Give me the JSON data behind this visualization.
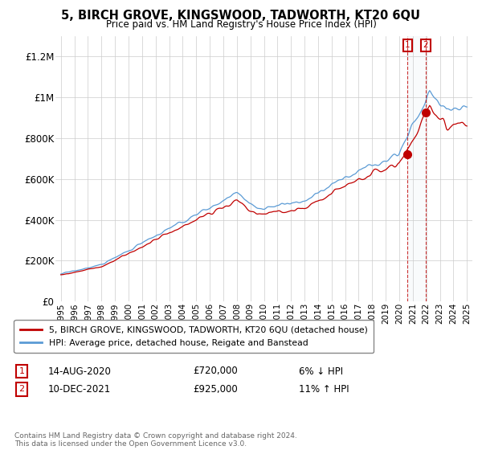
{
  "title": "5, BIRCH GROVE, KINGSWOOD, TADWORTH, KT20 6QU",
  "subtitle": "Price paid vs. HM Land Registry's House Price Index (HPI)",
  "ylim": [
    0,
    1300000
  ],
  "yticks": [
    0,
    200000,
    400000,
    600000,
    800000,
    1000000,
    1200000
  ],
  "ytick_labels": [
    "£0",
    "£200K",
    "£400K",
    "£600K",
    "£800K",
    "£1M",
    "£1.2M"
  ],
  "hpi_color": "#5b9bd5",
  "price_color": "#c00000",
  "vline_color": "#c00000",
  "span_color": "#dce6f1",
  "legend_label_price": "5, BIRCH GROVE, KINGSWOOD, TADWORTH, KT20 6QU (detached house)",
  "legend_label_hpi": "HPI: Average price, detached house, Reigate and Banstead",
  "footnote": "Contains HM Land Registry data © Crown copyright and database right 2024.\nThis data is licensed under the Open Government Licence v3.0.",
  "t1_year": 2020.619,
  "t1_price": 720000,
  "t1_label": "1",
  "t1_date": "14-AUG-2020",
  "t1_price_str": "£720,000",
  "t1_note": "6% ↓ HPI",
  "t2_year": 2021.94,
  "t2_price": 925000,
  "t2_label": "2",
  "t2_date": "10-DEC-2021",
  "t2_price_str": "£925,000",
  "t2_note": "11% ↑ HPI"
}
